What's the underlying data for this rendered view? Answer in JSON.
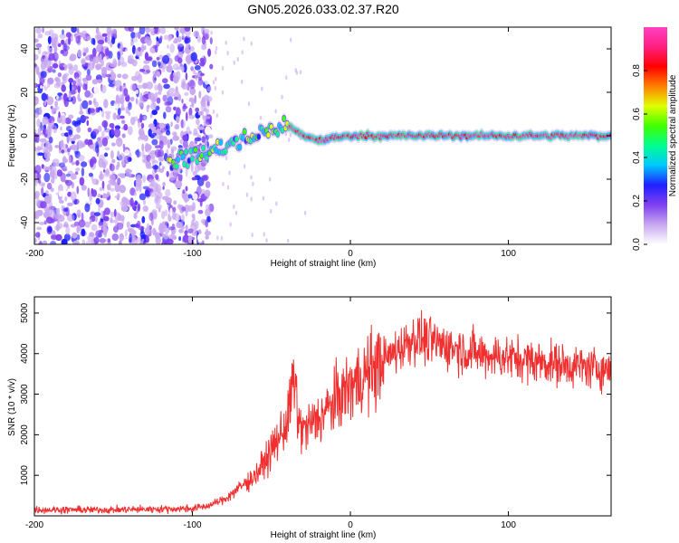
{
  "figure": {
    "title": "GN05.2026.033.02.37.R20"
  },
  "chart_data": [
    {
      "type": "heatmap",
      "name": "spectrogram",
      "xlabel": "Height of straight line (km)",
      "ylabel": "Frequency (Hz)",
      "xlim": [
        -200,
        165
      ],
      "ylim": [
        -50,
        50
      ],
      "xticks": [
        -200,
        -100,
        0,
        100
      ],
      "yticks": [
        -40,
        -20,
        0,
        20,
        40
      ],
      "colorbar": {
        "label": "Normalized spectral amplitude",
        "range": [
          0,
          1
        ],
        "ticks": [
          0.0,
          0.2,
          0.4,
          0.6,
          0.8
        ],
        "tick_labels": [
          "0.0",
          "0.2",
          "0.4",
          "0.6",
          "0.8"
        ],
        "colors": [
          "#ffffff",
          "#c8a8f0",
          "#8040f0",
          "#2020ff",
          "#00c8ff",
          "#00ff90",
          "#40ff00",
          "#e0ff00",
          "#ff8000",
          "#ff0000",
          "#ff2080",
          "#ff40c0"
        ]
      },
      "description_of_content": "Noisy broadband speckle below about -90 km; a signal trace rising from about -10 Hz at -110 km to about 5 Hz at -40 km, then staying flat near 0 Hz with normalized amplitude near 1 from -40 km to 165 km.",
      "trace": {
        "x": [
          -115,
          -100,
          -90,
          -80,
          -70,
          -60,
          -50,
          -40,
          -30,
          -20,
          0,
          50,
          100,
          165
        ],
        "y": [
          -12,
          -10,
          -8,
          -5,
          -3,
          0,
          3,
          5,
          0,
          -2,
          0,
          0,
          0,
          0
        ]
      },
      "noise_region_x": [
        -200,
        -88
      ]
    },
    {
      "type": "line",
      "name": "snr",
      "xlabel": "Height of straight line (km)",
      "ylabel": "SNR (10 * v/v)",
      "xlim": [
        -200,
        165
      ],
      "ylim": [
        0,
        5400
      ],
      "xticks": [
        -200,
        -100,
        0,
        100
      ],
      "yticks": [
        1000,
        2000,
        3000,
        4000,
        5000
      ],
      "line_color": "#f03030",
      "series": [
        {
          "name": "SNR",
          "x": [
            -200,
            -150,
            -100,
            -90,
            -80,
            -70,
            -60,
            -50,
            -40,
            -35,
            -34,
            -30,
            -20,
            -10,
            0,
            10,
            20,
            30,
            40,
            50,
            60,
            80,
            100,
            120,
            140,
            165
          ],
          "values": [
            150,
            150,
            180,
            250,
            400,
            700,
            1000,
            1600,
            2300,
            3600,
            2400,
            2100,
            2400,
            2800,
            3200,
            3500,
            3800,
            4100,
            4400,
            4300,
            4200,
            4000,
            3900,
            3800,
            3700,
            3600
          ]
        }
      ]
    }
  ]
}
